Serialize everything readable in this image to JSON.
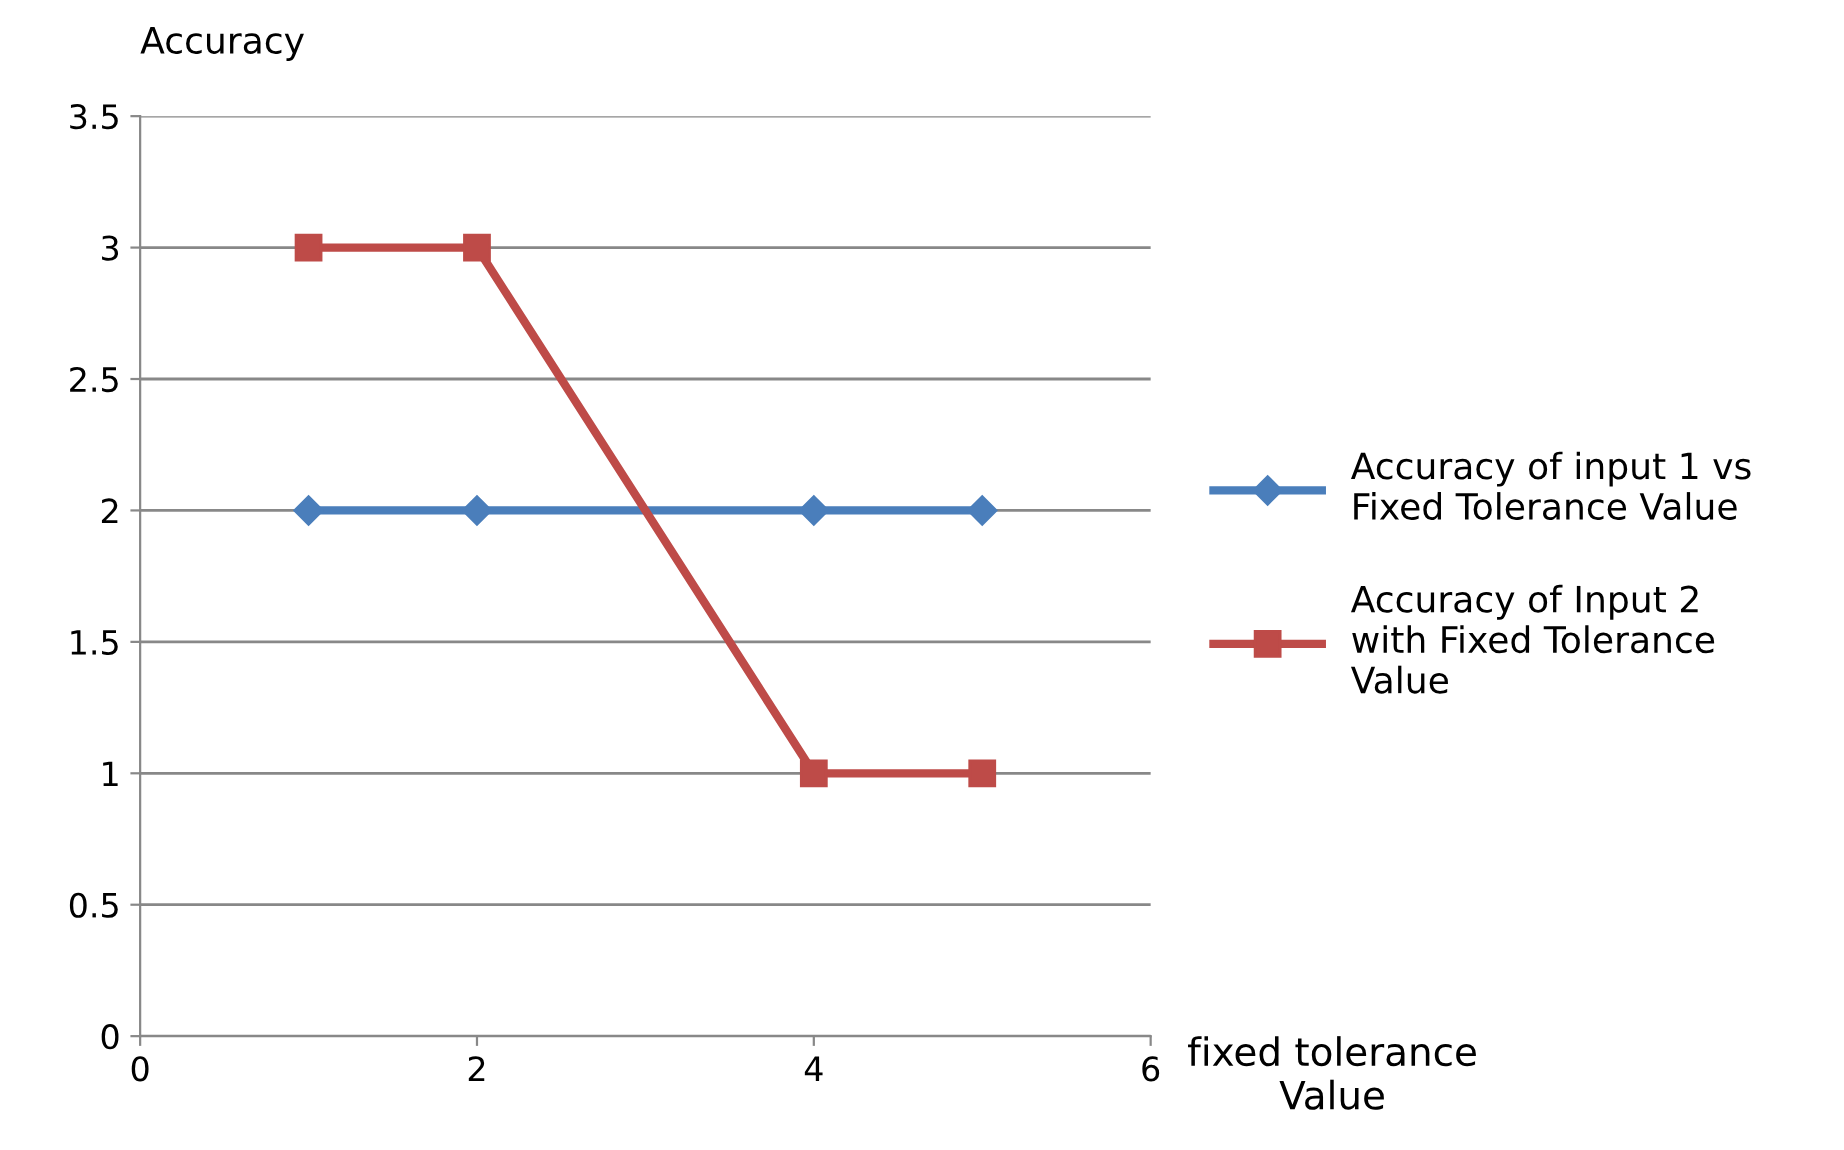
{
  "chart_data": {
    "type": "line",
    "ylabel": "Accuracy",
    "xlabel": "fixed tolerance Value",
    "xlim": [
      0,
      6
    ],
    "xticks": [
      0,
      2,
      4,
      6
    ],
    "ylim": [
      0,
      3.5
    ],
    "yticks": [
      0,
      0.5,
      1,
      1.5,
      2,
      2.5,
      3,
      3.5
    ],
    "grid": "y",
    "legend": "right",
    "series": [
      {
        "name": "Accuracy of input 1 vs Fixed Tolerance Value",
        "color": "#4a7ebb",
        "marker": "diamond",
        "x": [
          1,
          2,
          4,
          5
        ],
        "values": [
          2,
          2,
          2,
          2
        ]
      },
      {
        "name": "Accuracy of Input 2 with Fixed Tolerance Value",
        "color": "#be4b48",
        "marker": "square",
        "x": [
          1,
          2,
          4,
          5
        ],
        "values": [
          3,
          3,
          1,
          1
        ]
      }
    ]
  }
}
